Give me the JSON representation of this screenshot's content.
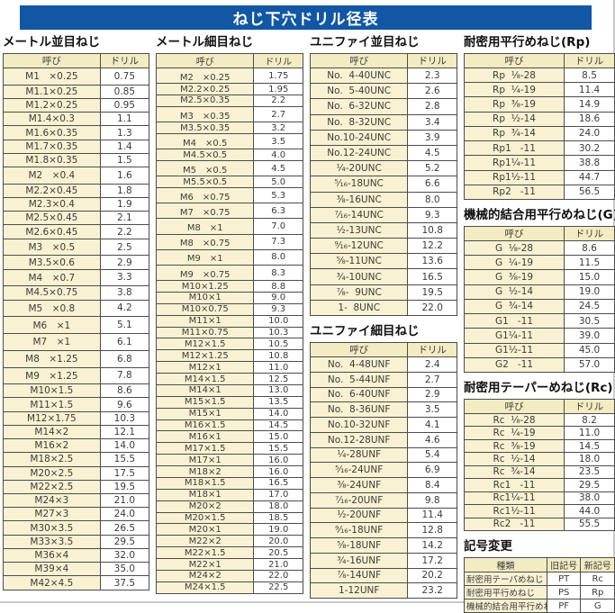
{
  "title": "ねじ下穴ドリル径表",
  "col_headers": {
    "name": "呼び",
    "drill": "ドリル"
  },
  "tables": {
    "metric_coarse": {
      "title": "メートル並目ねじ",
      "rows": [
        [
          "M1　×0.25",
          "0.75"
        ],
        [
          "M1.1×0.25",
          "0.85"
        ],
        [
          "M1.2×0.25",
          "0.95"
        ],
        [
          "M1.4×0.3",
          "1.1"
        ],
        [
          "M1.6×0.35",
          "1.3"
        ],
        [
          "M1.7×0.35",
          "1.4"
        ],
        [
          "M1.8×0.35",
          "1.5"
        ],
        [
          "M2　×0.4",
          "1.6"
        ],
        [
          "M2.2×0.45",
          "1.8"
        ],
        [
          "M2.3×0.4",
          "1.9"
        ],
        [
          "M2.5×0.45",
          "2.1"
        ],
        [
          "M2.6×0.45",
          "2.2"
        ],
        [
          "M3　×0.5",
          "2.5"
        ],
        [
          "M3.5×0.6",
          "2.9"
        ],
        [
          "M4　×0.7",
          "3.3"
        ],
        [
          "M4.5×0.75",
          "3.8"
        ],
        [
          "M5　×0.8",
          "4.2"
        ],
        [
          "M6　×1",
          "5.1"
        ],
        [
          "M7　×1",
          "6.1"
        ],
        [
          "M8　×1.25",
          "6.8"
        ],
        [
          "M9　×1.25",
          "7.8"
        ],
        [
          "M10×1.5",
          "8.6"
        ],
        [
          "M11×1.5",
          "9.6"
        ],
        [
          "M12×1.75",
          "10.3"
        ],
        [
          "M14×2",
          "12.1"
        ],
        [
          "M16×2",
          "14.0"
        ],
        [
          "M18×2.5",
          "15.5"
        ],
        [
          "M20×2.5",
          "17.5"
        ],
        [
          "M22×2.5",
          "19.5"
        ],
        [
          "M24×3",
          "21.0"
        ],
        [
          "M27×3",
          "24.0"
        ],
        [
          "M30×3.5",
          "26.5"
        ],
        [
          "M33×3.5",
          "29.5"
        ],
        [
          "M36×4",
          "32.0"
        ],
        [
          "M39×4",
          "35.0"
        ],
        [
          "M42×4.5",
          "37.5"
        ]
      ]
    },
    "metric_fine": {
      "title": "メートル細目ねじ",
      "rows": [
        [
          "M2　×0.25",
          "1.75"
        ],
        [
          "M2.2×0.25",
          "1.95"
        ],
        [
          "M2.5×0.35",
          "2.2"
        ],
        [
          "M3　×0.35",
          "2.7"
        ],
        [
          "M3.5×0.35",
          "3.2"
        ],
        [
          "M4　×0.5",
          "3.5"
        ],
        [
          "M4.5×0.5",
          "4.0"
        ],
        [
          "M5　×0.5",
          "4.5"
        ],
        [
          "M5.5×0.5",
          "5.0"
        ],
        [
          "M6　×0.75",
          "5.3"
        ],
        [
          "M7　×0.75",
          "6.3"
        ],
        [
          "M8　×1",
          "7.0"
        ],
        [
          "M8　×0.75",
          "7.3"
        ],
        [
          "M9　×1",
          "8.0"
        ],
        [
          "M9　×0.75",
          "8.3"
        ],
        [
          "M10×1.25",
          "8.8"
        ],
        [
          "M10×1",
          "9.0"
        ],
        [
          "M10×0.75",
          "9.3"
        ],
        [
          "M11×1",
          "10.0"
        ],
        [
          "M11×0.75",
          "10.3"
        ],
        [
          "M12×1.5",
          "10.5"
        ],
        [
          "M12×1.25",
          "10.8"
        ],
        [
          "M12×1",
          "11.0"
        ],
        [
          "M14×1.5",
          "12.5"
        ],
        [
          "M14×1",
          "13.0"
        ],
        [
          "M15×1.5",
          "13.5"
        ],
        [
          "M15×1",
          "14.0"
        ],
        [
          "M16×1.5",
          "14.5"
        ],
        [
          "M16×1",
          "15.0"
        ],
        [
          "M17×1.5",
          "15.5"
        ],
        [
          "M17×1",
          "16.0"
        ],
        [
          "M18×2",
          "16.0"
        ],
        [
          "M18×1.5",
          "16.5"
        ],
        [
          "M18×1",
          "17.0"
        ],
        [
          "M20×2",
          "18.0"
        ],
        [
          "M20×1.5",
          "18.5"
        ],
        [
          "M20×1",
          "19.0"
        ],
        [
          "M22×2",
          "20.0"
        ],
        [
          "M22×1.5",
          "20.5"
        ],
        [
          "M22×1",
          "21.0"
        ],
        [
          "M24×2",
          "22.0"
        ],
        [
          "M24×1.5",
          "22.5"
        ]
      ]
    },
    "unified_coarse": {
      "title": "ユニファイ並目ねじ",
      "rows": [
        [
          "No.  4-40UNC",
          "2.3"
        ],
        [
          "No.  5-40UNC",
          "2.6"
        ],
        [
          "No.  6-32UNC",
          "2.8"
        ],
        [
          "No.  8-32UNC",
          "3.4"
        ],
        [
          "No.10-24UNC",
          "3.9"
        ],
        [
          "No.12-24UNC",
          "4.5"
        ],
        [
          "¹⁄₄-20UNC",
          "5.2"
        ],
        [
          "⁵⁄₁₆-18UNC",
          "6.6"
        ],
        [
          "³⁄₈-16UNC",
          "8.0"
        ],
        [
          "⁷⁄₁₆-14UNC",
          "9.3"
        ],
        [
          "¹⁄₂-13UNC",
          "10.8"
        ],
        [
          "⁹⁄₁₆-12UNC",
          "12.2"
        ],
        [
          "⁵⁄₈-11UNC",
          "13.6"
        ],
        [
          "³⁄₄-10UNC",
          "16.5"
        ],
        [
          "⁷⁄₈-  9UNC",
          "19.5"
        ],
        [
          "1-  8UNC",
          "22.0"
        ]
      ]
    },
    "unified_fine": {
      "title": "ユニファイ細目ねじ",
      "rows": [
        [
          "No.  4-48UNF",
          "2.4"
        ],
        [
          "No.  5-44UNF",
          "2.7"
        ],
        [
          "No.  6-40UNF",
          "2.9"
        ],
        [
          "No.  8-36UNF",
          "3.5"
        ],
        [
          "No.10-32UNF",
          "4.1"
        ],
        [
          "No.12-28UNF",
          "4.6"
        ],
        [
          "¹⁄₄-28UNF",
          "5.4"
        ],
        [
          "⁵⁄₁₆-24UNF",
          "6.9"
        ],
        [
          "³⁄₈-24UNF",
          "8.4"
        ],
        [
          "⁷⁄₁₆-20UNF",
          "9.8"
        ],
        [
          "¹⁄₂-20UNF",
          "11.4"
        ],
        [
          "⁹⁄₁₆-18UNF",
          "12.8"
        ],
        [
          "⁵⁄₈-18UNF",
          "14.2"
        ],
        [
          "³⁄₄-16UNF",
          "17.2"
        ],
        [
          "⁷⁄₈-14UNF",
          "20.2"
        ],
        [
          "1-12UNF",
          "23.2"
        ]
      ]
    },
    "rp": {
      "title": "耐密用平行めねじ(Rp)",
      "rows": [
        [
          "Rp  ¹⁄₈-28",
          "8.5"
        ],
        [
          "Rp  ¹⁄₄-19",
          "11.4"
        ],
        [
          "Rp  ³⁄₈-19",
          "14.9"
        ],
        [
          "Rp  ¹⁄₂-14",
          "18.6"
        ],
        [
          "Rp  ³⁄₄-14",
          "24.0"
        ],
        [
          "Rp1   -11",
          "30.2"
        ],
        [
          "Rp1¹⁄₄-11",
          "38.8"
        ],
        [
          "Rp1¹⁄₂-11",
          "44.7"
        ],
        [
          "Rp2   -11",
          "56.5"
        ]
      ]
    },
    "g": {
      "title": "機械的結合用平行めねじ(G)",
      "rows": [
        [
          "G  ¹⁄₈-28",
          "8.6"
        ],
        [
          "G  ¹⁄₄-19",
          "11.5"
        ],
        [
          "G  ³⁄₈-19",
          "15.0"
        ],
        [
          "G  ¹⁄₂-14",
          "19.0"
        ],
        [
          "G  ³⁄₄-14",
          "24.5"
        ],
        [
          "G1   -11",
          "30.5"
        ],
        [
          "G1¹⁄₄-11",
          "39.0"
        ],
        [
          "G1¹⁄₂-11",
          "45.0"
        ],
        [
          "G2   -11",
          "57.0"
        ]
      ]
    },
    "rc": {
      "title": "耐密用テーパーめねじ(Rc)",
      "rows": [
        [
          "Rc  ¹⁄₈-28",
          "8.2"
        ],
        [
          "Rc  ¹⁄₄-19",
          "11.0"
        ],
        [
          "Rc  ³⁄₈-19",
          "14.5"
        ],
        [
          "Rc  ¹⁄₂-14",
          "18.0"
        ],
        [
          "Rc  ³⁄₄-14",
          "23.5"
        ],
        [
          "Rc1   -11",
          "29.5"
        ],
        [
          "Rc1¹⁄₄-11",
          "38.0"
        ],
        [
          "Rc1¹⁄₂-11",
          "44.0"
        ],
        [
          "Rc2   -11",
          "55.5"
        ]
      ]
    },
    "symbol_change": {
      "title": "記号変更",
      "headers": [
        "種類",
        "旧記号",
        "新記号"
      ],
      "rows": [
        [
          "耐密用テーパめねじ",
          "PT",
          "Rc"
        ],
        [
          "耐密用平行めねじ",
          "PS",
          "Rp"
        ],
        [
          "機械的結合用平行めねじ",
          "PF",
          "G"
        ]
      ]
    }
  },
  "colors": {
    "banner_bg": "#1157a4",
    "banner_text": "#ffffff",
    "header_cell_bg": "#f3ecc2",
    "name_cell_bg": "#f8f2d2",
    "value_cell_bg": "#ffffff",
    "border": "#4c4c4c"
  }
}
